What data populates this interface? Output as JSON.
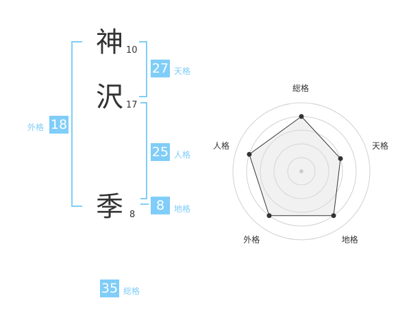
{
  "name": {
    "chars": [
      {
        "char": "神",
        "strokes": "10"
      },
      {
        "char": "沢",
        "strokes": "17"
      },
      {
        "char": "季",
        "strokes": "8"
      }
    ]
  },
  "kaku": {
    "tenkaku": {
      "value": "27",
      "label": "天格"
    },
    "jinkaku": {
      "value": "25",
      "label": "人格"
    },
    "chikaku": {
      "value": "8",
      "label": "地格"
    },
    "gaikaku": {
      "value": "18",
      "label": "外格"
    },
    "soukaku": {
      "value": "35",
      "label": "総格"
    }
  },
  "colors": {
    "accent": "#7fcdf8",
    "text": "#333333"
  },
  "chart_data": {
    "type": "radar",
    "axes": [
      "総格",
      "天格",
      "地格",
      "外格",
      "人格"
    ],
    "values": [
      4,
      3,
      4,
      4,
      4
    ],
    "range": [
      0,
      5
    ],
    "rings": 5
  }
}
